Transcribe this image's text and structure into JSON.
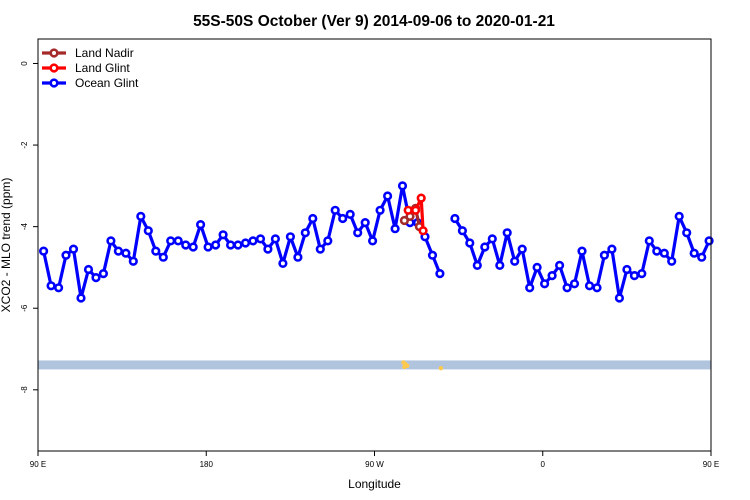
{
  "chart_data": {
    "type": "line",
    "title": "55S-50S October (Ver 9)   2014-09-06 to 2020-01-21",
    "xlabel": "Longitude",
    "ylabel": "XCO2 - MLO trend (ppm)",
    "xlim": [
      90,
      450
    ],
    "ylim": [
      -9.5,
      0.6
    ],
    "x_ticks": [
      {
        "value": 90,
        "label": "90 E"
      },
      {
        "value": 180,
        "label": "180"
      },
      {
        "value": 270,
        "label": "90 W"
      },
      {
        "value": 360,
        "label": "0"
      },
      {
        "value": 450,
        "label": "90 E"
      }
    ],
    "y_ticks": [
      {
        "value": 0,
        "label": "0"
      },
      {
        "value": -2,
        "label": "-2"
      },
      {
        "value": -4,
        "label": "-4"
      },
      {
        "value": -6,
        "label": "-6"
      },
      {
        "value": -8,
        "label": "-8"
      }
    ],
    "grid": false,
    "legend_position": "top-left",
    "series": [
      {
        "name": "Land Nadir",
        "color": "#a52a2a",
        "points": [
          [
            286,
            -3.85
          ],
          [
            289,
            -3.75
          ],
          [
            292,
            -3.55
          ],
          [
            294,
            -4.0
          ]
        ]
      },
      {
        "name": "Land Glint",
        "color": "#ff0000",
        "points": [
          [
            288,
            -3.6
          ],
          [
            292,
            -3.6
          ],
          [
            295,
            -3.3
          ],
          [
            296,
            -4.1
          ]
        ]
      },
      {
        "name": "Ocean Glint",
        "color": "#0000ff",
        "points": [
          [
            93,
            -4.6
          ],
          [
            97,
            -5.45
          ],
          [
            101,
            -5.5
          ],
          [
            105,
            -4.7
          ],
          [
            109,
            -4.55
          ],
          [
            113,
            -5.75
          ],
          [
            117,
            -5.05
          ],
          [
            121,
            -5.25
          ],
          [
            125,
            -5.15
          ],
          [
            129,
            -4.35
          ],
          [
            133,
            -4.6
          ],
          [
            137,
            -4.65
          ],
          [
            141,
            -4.85
          ],
          [
            145,
            -3.75
          ],
          [
            149,
            -4.1
          ],
          [
            153,
            -4.6
          ],
          [
            157,
            -4.75
          ],
          [
            161,
            -4.35
          ],
          [
            165,
            -4.35
          ],
          [
            169,
            -4.45
          ],
          [
            173,
            -4.5
          ],
          [
            177,
            -3.95
          ],
          [
            181,
            -4.5
          ],
          [
            185,
            -4.45
          ],
          [
            189,
            -4.2
          ],
          [
            193,
            -4.45
          ],
          [
            197,
            -4.45
          ],
          [
            201,
            -4.4
          ],
          [
            205,
            -4.35
          ],
          [
            209,
            -4.3
          ],
          [
            213,
            -4.55
          ],
          [
            217,
            -4.3
          ],
          [
            221,
            -4.9
          ],
          [
            225,
            -4.25
          ],
          [
            229,
            -4.75
          ],
          [
            233,
            -4.15
          ],
          [
            237,
            -3.8
          ],
          [
            241,
            -4.55
          ],
          [
            245,
            -4.35
          ],
          [
            249,
            -3.6
          ],
          [
            253,
            -3.8
          ],
          [
            257,
            -3.7
          ],
          [
            261,
            -4.15
          ],
          [
            265,
            -3.9
          ],
          [
            269,
            -4.35
          ],
          [
            273,
            -3.6
          ],
          [
            277,
            -3.25
          ],
          [
            281,
            -4.05
          ],
          [
            285,
            -3.0
          ],
          [
            289,
            -3.9
          ],
          [
            293,
            -3.9
          ],
          [
            297,
            -4.25
          ],
          [
            301,
            -4.7
          ],
          [
            305,
            -5.15
          ],
          [
            313,
            -3.8
          ],
          [
            317,
            -4.1
          ],
          [
            321,
            -4.4
          ],
          [
            325,
            -4.95
          ],
          [
            329,
            -4.5
          ],
          [
            333,
            -4.3
          ],
          [
            337,
            -4.95
          ],
          [
            341,
            -4.15
          ],
          [
            345,
            -4.85
          ],
          [
            349,
            -4.55
          ],
          [
            353,
            -5.5
          ],
          [
            357,
            -5.0
          ],
          [
            361,
            -5.4
          ],
          [
            365,
            -5.2
          ],
          [
            369,
            -4.95
          ],
          [
            373,
            -5.5
          ],
          [
            377,
            -5.4
          ],
          [
            381,
            -4.6
          ],
          [
            385,
            -5.45
          ],
          [
            389,
            -5.5
          ],
          [
            393,
            -4.7
          ],
          [
            397,
            -4.55
          ],
          [
            401,
            -5.75
          ],
          [
            405,
            -5.05
          ],
          [
            409,
            -5.2
          ],
          [
            413,
            -5.15
          ],
          [
            417,
            -4.35
          ],
          [
            421,
            -4.6
          ],
          [
            425,
            -4.65
          ],
          [
            429,
            -4.85
          ],
          [
            433,
            -3.75
          ],
          [
            437,
            -4.15
          ],
          [
            441,
            -4.65
          ],
          [
            445,
            -4.75
          ],
          [
            449,
            -4.35
          ]
        ]
      }
    ],
    "band": {
      "y_top": -7.28,
      "y_bottom": -7.5,
      "color": "#b0c4de"
    },
    "band_marks": [
      {
        "x": 285.5,
        "y": -7.33,
        "color": "#ffc94d"
      },
      {
        "x": 286.5,
        "y": -7.37,
        "color": "#ffc94d"
      },
      {
        "x": 287.5,
        "y": -7.41,
        "color": "#ffc94d"
      },
      {
        "x": 286.0,
        "y": -7.44,
        "color": "#ffc94d"
      },
      {
        "x": 305.5,
        "y": -7.47,
        "color": "#ffc94d"
      }
    ]
  }
}
